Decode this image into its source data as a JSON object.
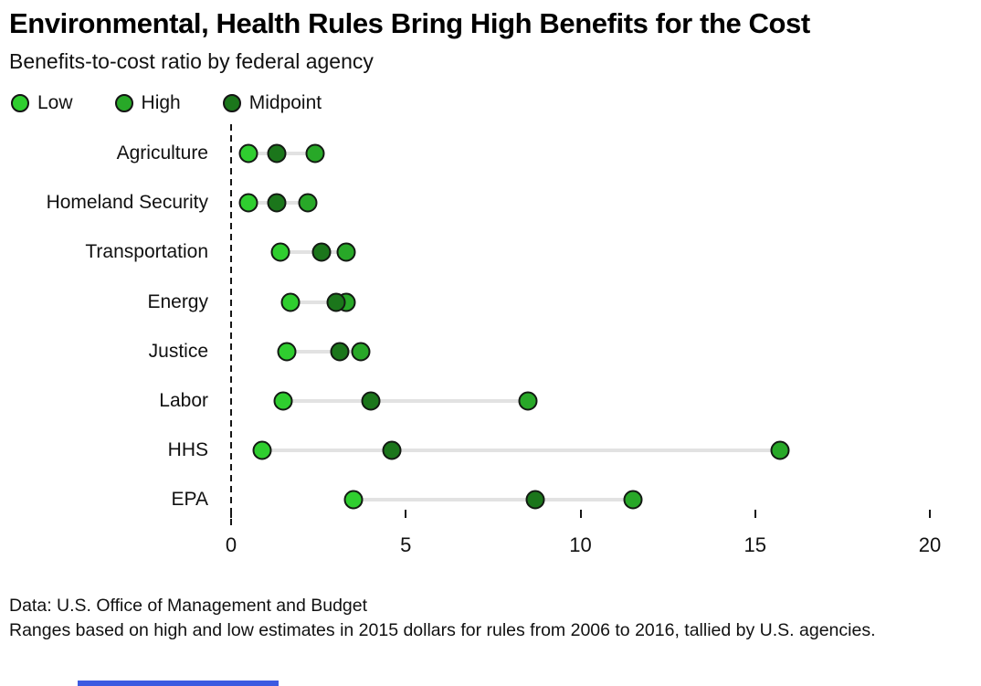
{
  "header": {
    "title": "Environmental, Health Rules Bring High Benefits for the Cost",
    "subtitle": "Benefits-to-cost ratio by federal agency"
  },
  "legend": [
    {
      "label": "Low",
      "color": "#2fce2f"
    },
    {
      "label": "High",
      "color": "#28a828"
    },
    {
      "label": "Midpoint",
      "color": "#1b761b"
    }
  ],
  "chart_data": {
    "type": "scatter",
    "subtype": "dot-range-dumbbell",
    "title": "Environmental, Health Rules Bring High Benefits for the Cost",
    "subtitle": "Benefits-to-cost ratio by federal agency",
    "categories": [
      "Agriculture",
      "Homeland Security",
      "Transportation",
      "Energy",
      "Justice",
      "Labor",
      "HHS",
      "EPA"
    ],
    "series": [
      {
        "name": "Low",
        "color": "#2fce2f",
        "values": [
          0.5,
          0.5,
          1.4,
          1.7,
          1.6,
          1.5,
          0.9,
          3.5
        ]
      },
      {
        "name": "High",
        "color": "#28a828",
        "values": [
          2.4,
          2.2,
          3.3,
          3.3,
          3.7,
          8.5,
          15.7,
          11.5
        ]
      },
      {
        "name": "Midpoint",
        "color": "#1b761b",
        "values": [
          1.3,
          1.3,
          2.6,
          3.0,
          3.1,
          4.0,
          4.6,
          8.7
        ]
      }
    ],
    "xlabel": "",
    "ylabel": "",
    "xlim": [
      0,
      20
    ],
    "xticks": [
      0,
      5,
      10,
      15,
      20
    ],
    "grid": false,
    "legend_position": "top-left",
    "zero_line": "dashed"
  },
  "footer": {
    "source": "Data: U.S. Office of Management and Budget",
    "note": "Ranges based on high and low estimates in 2015 dollars for rules from 2006 to 2016, tallied by U.S. agencies."
  },
  "colors": {
    "low": "#2fce2f",
    "high": "#28a828",
    "midpoint": "#1b761b",
    "dot_ring": "#131a13",
    "connector": "#e2e2e2",
    "axis": "#161616",
    "accent_blue": "#3c5ae1",
    "background": "#ffffff"
  }
}
